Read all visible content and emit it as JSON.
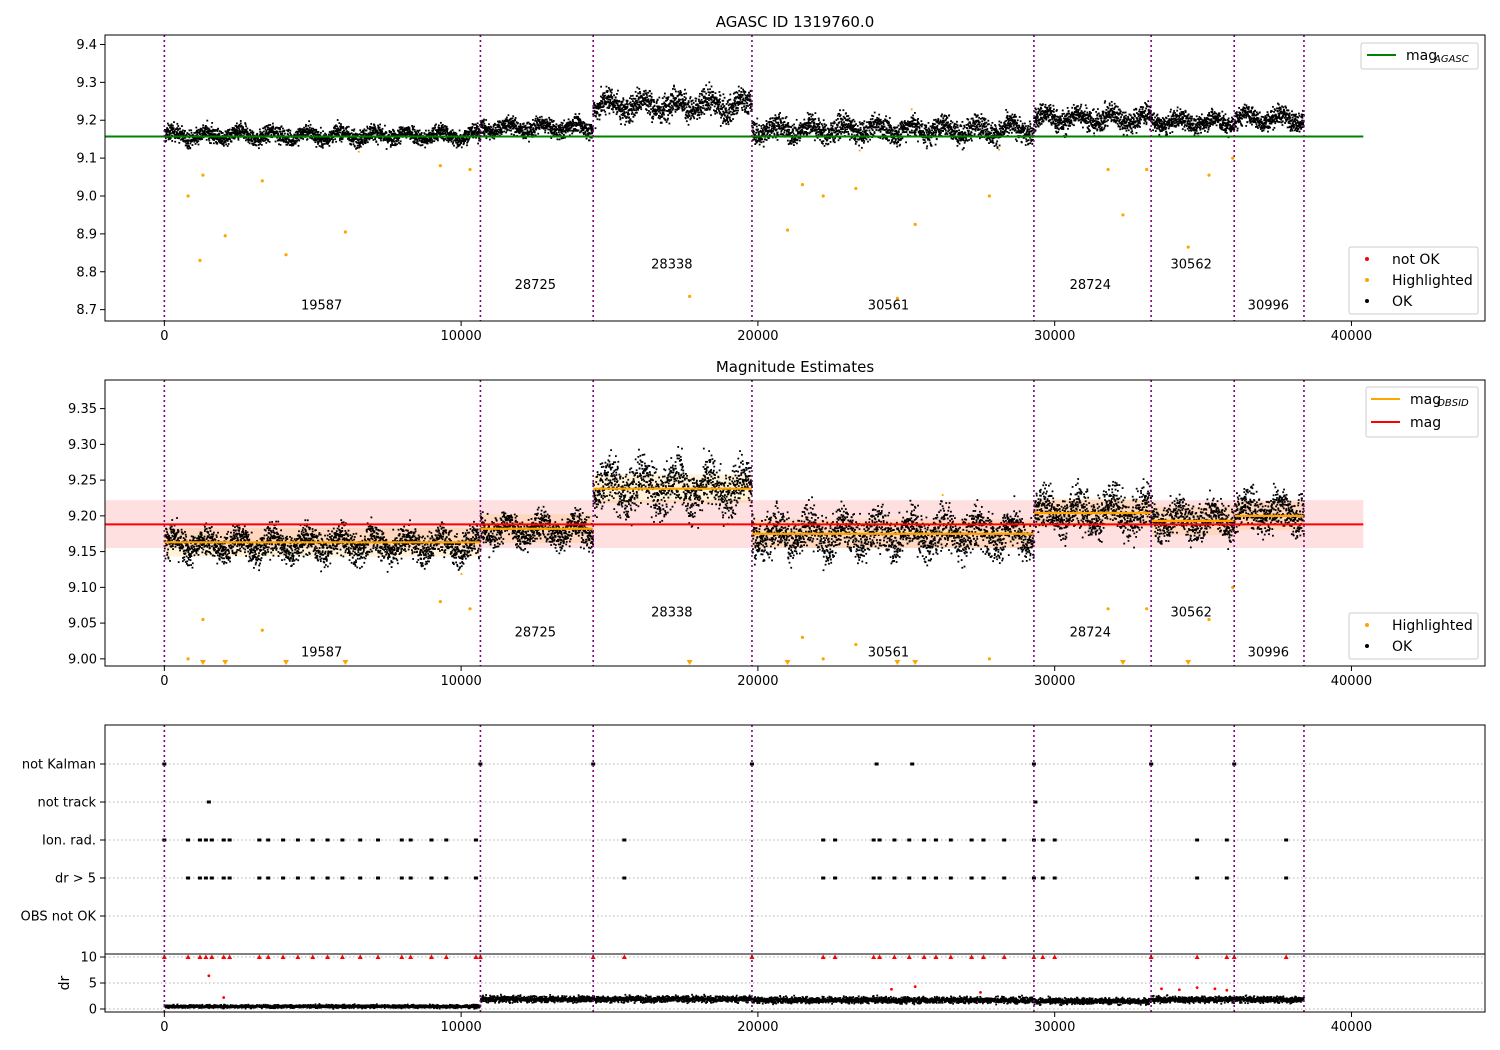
{
  "chart_data": [
    {
      "type": "scatter",
      "title": "AGASC ID 1319760.0",
      "xlim": [
        -2000,
        44500
      ],
      "ylim": [
        8.67,
        9.425
      ],
      "xticks": [
        0,
        10000,
        20000,
        30000,
        40000
      ],
      "yticks": [
        8.7,
        8.8,
        8.9,
        9.0,
        9.1,
        9.2,
        9.3,
        9.4
      ],
      "obs_boundaries": [
        0,
        10650,
        14450,
        19800,
        29300,
        33250,
        36050,
        38400
      ],
      "obs_labels": [
        {
          "label": "19587",
          "x": 5300,
          "y": 8.7
        },
        {
          "label": "28725",
          "x": 12500,
          "y": 8.755
        },
        {
          "label": "28338",
          "x": 17100,
          "y": 8.808
        },
        {
          "label": "30561",
          "x": 24400,
          "y": 8.7
        },
        {
          "label": "28724",
          "x": 31200,
          "y": 8.755
        },
        {
          "label": "30562",
          "x": 34600,
          "y": 8.808
        },
        {
          "label": "30996",
          "x": 37200,
          "y": 8.7
        }
      ],
      "segments": [
        {
          "x0": 0,
          "x1": 10650,
          "mean": 9.16,
          "spread": 0.022
        },
        {
          "x0": 10650,
          "x1": 14450,
          "mean": 9.18,
          "spread": 0.022
        },
        {
          "x0": 14450,
          "x1": 19800,
          "mean": 9.24,
          "spread": 0.035
        },
        {
          "x0": 19800,
          "x1": 29300,
          "mean": 9.175,
          "spread": 0.03
        },
        {
          "x0": 29300,
          "x1": 33250,
          "mean": 9.205,
          "spread": 0.03
        },
        {
          "x0": 33250,
          "x1": 36050,
          "mean": 9.195,
          "spread": 0.025
        },
        {
          "x0": 36050,
          "x1": 38400,
          "mean": 9.205,
          "spread": 0.025
        }
      ],
      "outliers": [
        [
          1200,
          8.83
        ],
        [
          2050,
          8.895
        ],
        [
          4100,
          8.845
        ],
        [
          6100,
          8.905
        ],
        [
          800,
          9.0
        ],
        [
          3300,
          9.04
        ],
        [
          9300,
          9.08
        ],
        [
          10300,
          9.07
        ],
        [
          17700,
          8.735
        ],
        [
          21000,
          8.91
        ],
        [
          22200,
          9.0
        ],
        [
          23300,
          9.02
        ],
        [
          25300,
          8.925
        ],
        [
          27800,
          9.0
        ],
        [
          32300,
          8.95
        ],
        [
          33100,
          9.07
        ],
        [
          34500,
          8.865
        ],
        [
          35200,
          9.055
        ],
        [
          36000,
          9.1
        ],
        [
          1300,
          9.055
        ],
        [
          21500,
          9.03
        ],
        [
          24700,
          8.73
        ],
        [
          31800,
          9.07
        ]
      ],
      "reference_lines": [
        {
          "name": "mag_AGASC",
          "value": 9.157,
          "x0": -2000,
          "x1": 40400,
          "color": "#008000"
        }
      ],
      "legend_top": {
        "position": "top-right",
        "entries": [
          {
            "label": "mag",
            "sub": "AGASC",
            "kind": "line",
            "color": "#008000"
          }
        ]
      },
      "legend_bottom": {
        "position": "bottom-right",
        "entries": [
          {
            "label": "not OK",
            "kind": "point",
            "color": "#ff0000"
          },
          {
            "label": "Highlighted",
            "kind": "point",
            "color": "#ffa500"
          },
          {
            "label": "OK",
            "kind": "point",
            "color": "#000000"
          }
        ]
      }
    },
    {
      "type": "scatter",
      "title": "Magnitude Estimates",
      "xlim": [
        -2000,
        44500
      ],
      "ylim": [
        8.99,
        9.39
      ],
      "xticks": [
        0,
        10000,
        20000,
        30000,
        40000
      ],
      "yticks": [
        9.0,
        9.05,
        9.1,
        9.15,
        9.2,
        9.25,
        9.3,
        9.35
      ],
      "ytick_labels": [
        "9.00",
        "9.05",
        "9.10",
        "9.15",
        "9.20",
        "9.25",
        "9.30",
        "9.35"
      ],
      "obs_labels": [
        {
          "label": "19587",
          "x": 5300,
          "y": 9.003
        },
        {
          "label": "28725",
          "x": 12500,
          "y": 9.031
        },
        {
          "label": "28338",
          "x": 17100,
          "y": 9.059
        },
        {
          "label": "30561",
          "x": 24400,
          "y": 9.003
        },
        {
          "label": "28724",
          "x": 31200,
          "y": 9.031
        },
        {
          "label": "30562",
          "x": 34600,
          "y": 9.059
        },
        {
          "label": "30996",
          "x": 37200,
          "y": 9.003
        }
      ],
      "mag": {
        "value": 9.188,
        "band": [
          9.155,
          9.222
        ],
        "x0": -2000,
        "x1": 40400,
        "color": "#ff0000"
      },
      "mag_obsid": [
        {
          "x0": 0,
          "x1": 10650,
          "value": 9.163
        },
        {
          "x0": 10650,
          "x1": 14450,
          "value": 9.182
        },
        {
          "x0": 14450,
          "x1": 19800,
          "value": 9.238
        },
        {
          "x0": 19800,
          "x1": 29300,
          "value": 9.175
        },
        {
          "x0": 29300,
          "x1": 33250,
          "value": 9.204
        },
        {
          "x0": 33250,
          "x1": 36050,
          "value": 9.193
        },
        {
          "x0": 36050,
          "x1": 38400,
          "value": 9.2
        }
      ],
      "clipped_low_x": [
        1300,
        2050,
        4100,
        6100,
        17700,
        21000,
        24700,
        25300,
        32300,
        34500
      ],
      "legend_top": {
        "position": "top-right",
        "entries": [
          {
            "label": "mag",
            "sub": "OBSID",
            "kind": "line",
            "color": "#ffa500"
          },
          {
            "label": "mag",
            "kind": "line",
            "color": "#ff0000"
          }
        ]
      },
      "legend_bottom": {
        "position": "bottom-right",
        "entries": [
          {
            "label": "Highlighted",
            "kind": "point",
            "color": "#ffa500"
          },
          {
            "label": "OK",
            "kind": "point",
            "color": "#000000"
          }
        ]
      }
    },
    {
      "type": "scatter",
      "title": "",
      "xlim": [
        -2000,
        44500
      ],
      "xticks": [
        0,
        10000,
        20000,
        30000,
        40000
      ],
      "flag_rows": [
        "not Kalman",
        "not track",
        "Ion. rad.",
        "dr > 5",
        "OBS not OK"
      ],
      "flag_points": {
        "not Kalman": [
          0,
          10650,
          14450,
          19800,
          24000,
          25200,
          29300,
          33250,
          36050
        ],
        "not track": [
          1500,
          29350
        ],
        "Ion. rad.": [
          0,
          800,
          1200,
          1400,
          1600,
          2000,
          2200,
          3200,
          3500,
          4000,
          4500,
          5000,
          5500,
          6000,
          6600,
          7200,
          8000,
          8300,
          9000,
          9500,
          10500,
          15500,
          22200,
          22600,
          23900,
          24100,
          24600,
          25100,
          25600,
          26000,
          26500,
          27200,
          27600,
          28300,
          29300,
          29600,
          30000,
          34800,
          35800,
          37800
        ],
        "dr > 5": [
          800,
          1200,
          1400,
          1600,
          2000,
          2200,
          3200,
          3500,
          4000,
          4500,
          5000,
          5500,
          6000,
          6600,
          7200,
          8000,
          8300,
          9000,
          9500,
          10500,
          15500,
          22200,
          22600,
          23900,
          24100,
          24600,
          25100,
          25600,
          26000,
          26500,
          27200,
          27600,
          28300,
          29300,
          29600,
          30000,
          34800,
          35800,
          37800
        ],
        "OBS not OK": []
      },
      "dr": {
        "ylabel": "dr",
        "ylim": [
          -0.5,
          10.5
        ],
        "yticks": [
          0,
          5,
          10
        ],
        "segments": [
          {
            "x0": 0,
            "x1": 10650,
            "mean": 0.5,
            "spread": 0.3
          },
          {
            "x0": 10650,
            "x1": 14450,
            "mean": 1.9,
            "spread": 0.6
          },
          {
            "x0": 14450,
            "x1": 19800,
            "mean": 1.9,
            "spread": 0.6
          },
          {
            "x0": 19800,
            "x1": 29300,
            "mean": 1.7,
            "spread": 0.6
          },
          {
            "x0": 29300,
            "x1": 33250,
            "mean": 1.5,
            "spread": 0.6
          },
          {
            "x0": 33250,
            "x1": 36050,
            "mean": 1.8,
            "spread": 0.6
          },
          {
            "x0": 36050,
            "x1": 38400,
            "mean": 1.8,
            "spread": 0.6
          }
        ],
        "clipped_at_10_x": [
          0,
          800,
          1200,
          1400,
          1600,
          2000,
          2200,
          3200,
          3500,
          4000,
          4500,
          5000,
          5500,
          6000,
          6600,
          7200,
          8000,
          8300,
          9000,
          9500,
          10500,
          10650,
          14450,
          15500,
          19800,
          22200,
          22600,
          23900,
          24100,
          24600,
          25100,
          25600,
          26000,
          26500,
          27200,
          27600,
          28300,
          29300,
          29600,
          30000,
          33250,
          34800,
          35800,
          36050,
          37800
        ],
        "red_bumps": [
          [
            1500,
            6.4
          ],
          [
            2000,
            2.2
          ],
          [
            24500,
            3.8
          ],
          [
            25300,
            4.3
          ],
          [
            27500,
            3.2
          ],
          [
            33600,
            3.9
          ],
          [
            34200,
            3.7
          ],
          [
            34800,
            4.1
          ],
          [
            35400,
            3.9
          ],
          [
            35800,
            3.6
          ]
        ]
      }
    }
  ]
}
